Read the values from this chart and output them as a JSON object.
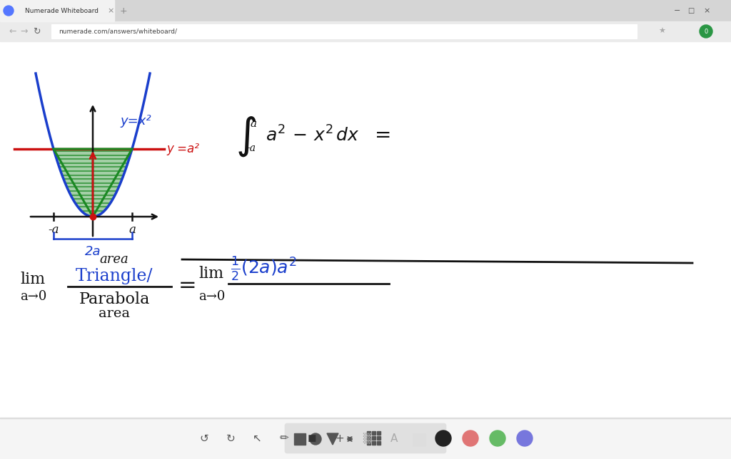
{
  "bg_color": "#ffffff",
  "fig_width": 10.24,
  "fig_height": 6.44,
  "parabola_color": "#1a3ecc",
  "line_color": "#cc1111",
  "triangle_color": "#1a8822",
  "hatch_color": "#1a8822",
  "axis_color": "#111111",
  "red_arrow_color": "#cc1111",
  "label_y_eq_x2": "y=x²",
  "label_y_eq_a2": "y =a²",
  "label_minus_a": "-a",
  "label_a": "a",
  "label_2a": "2a",
  "main_text_color": "#111111",
  "blue_text_color": "#1a3ecc",
  "red_text_color": "#cc1111",
  "green_text_color": "#1a8822"
}
